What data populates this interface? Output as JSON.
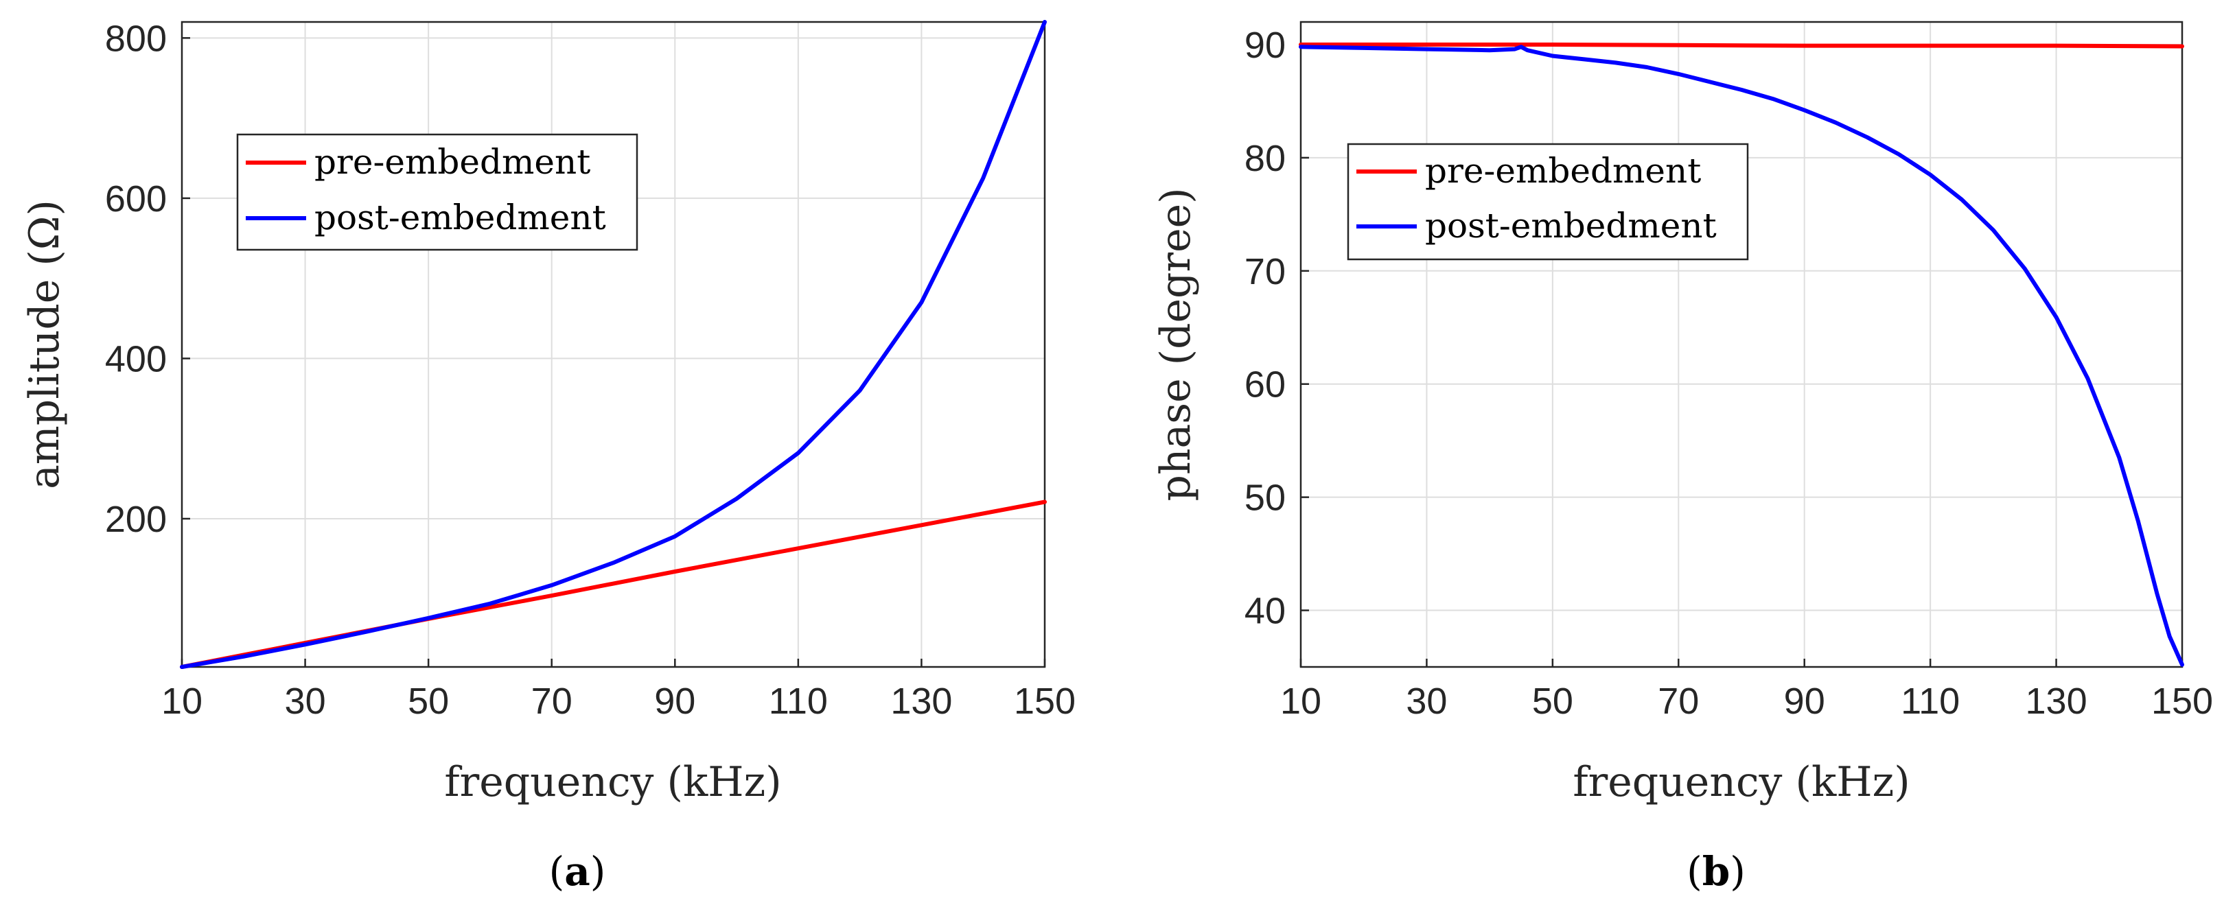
{
  "chart_data": [
    {
      "type": "line",
      "panel_label": "a",
      "xlabel": "frequency (kHz)",
      "ylabel": "amplitude (Ω)",
      "xlim": [
        10,
        150
      ],
      "ylim": [
        15,
        820
      ],
      "xticks": [
        10,
        30,
        50,
        70,
        90,
        110,
        130,
        150
      ],
      "yticks": [
        200,
        400,
        600,
        800
      ],
      "grid": true,
      "legend_position": "upper-left",
      "series": [
        {
          "name": "pre-embedment",
          "color": "#ff0000",
          "x": [
            10,
            30,
            50,
            70,
            90,
            110,
            130,
            150
          ],
          "y": [
            15,
            45,
            75,
            104,
            134,
            163,
            192,
            221
          ]
        },
        {
          "name": "post-embedment",
          "color": "#0000ff",
          "x": [
            10,
            20,
            30,
            40,
            50,
            60,
            70,
            80,
            90,
            100,
            110,
            120,
            130,
            140,
            150
          ],
          "y": [
            15,
            28,
            43,
            59,
            76,
            94,
            117,
            145,
            178,
            225,
            282,
            360,
            470,
            625,
            820
          ]
        }
      ]
    },
    {
      "type": "line",
      "panel_label": "b",
      "xlabel": "frequency (kHz)",
      "ylabel": "phase (degree)",
      "xlim": [
        10,
        150
      ],
      "ylim": [
        35,
        92
      ],
      "xticks": [
        10,
        30,
        50,
        70,
        90,
        110,
        130,
        150
      ],
      "yticks": [
        40,
        50,
        60,
        70,
        80,
        90
      ],
      "grid": true,
      "legend_position": "upper-left",
      "series": [
        {
          "name": "pre-embedment",
          "color": "#ff0000",
          "x": [
            10,
            30,
            50,
            70,
            90,
            110,
            130,
            150
          ],
          "y": [
            90.0,
            90.0,
            90.0,
            89.95,
            89.9,
            89.9,
            89.9,
            89.85
          ]
        },
        {
          "name": "post-embedment",
          "color": "#0000ff",
          "x": [
            10,
            20,
            30,
            40,
            44,
            45,
            46,
            50,
            55,
            60,
            65,
            70,
            75,
            80,
            85,
            90,
            95,
            100,
            105,
            110,
            115,
            120,
            125,
            130,
            135,
            140,
            143,
            146,
            148,
            150
          ],
          "y": [
            89.8,
            89.7,
            89.6,
            89.5,
            89.6,
            89.8,
            89.5,
            89.0,
            88.7,
            88.4,
            88.0,
            87.4,
            86.7,
            86.0,
            85.2,
            84.2,
            83.1,
            81.8,
            80.3,
            78.5,
            76.3,
            73.6,
            70.2,
            65.9,
            60.5,
            53.5,
            47.9,
            41.5,
            37.7,
            35.2
          ]
        }
      ]
    }
  ]
}
